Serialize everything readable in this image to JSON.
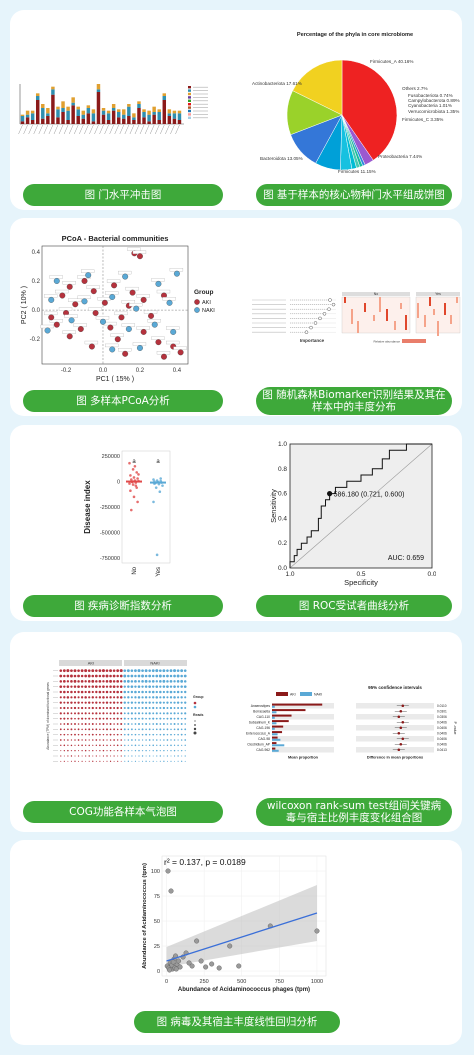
{
  "captions": [
    "图 门水平冲击图",
    "图 基于样本的核心物种门水平组成饼图",
    "图 多样本PCoA分析",
    "图 随机森林Biomarker识别结果及其在样本中的丰度分布",
    "图 疾病诊断指数分析",
    "图 ROC受试者曲线分析",
    "COG功能各样本气泡图",
    "wilcoxon rank-sum test组间关键病毒与宿主比例丰度变化组合图",
    "图 病毒及其宿主丰度线性回归分析"
  ],
  "colors": {
    "green": "#3ea93a",
    "aki": "#b5323d",
    "naki": "#5aa9d6",
    "bg": "#e6f4fb"
  },
  "chart_data": [
    {
      "id": "phylum-bar",
      "type": "bar",
      "series": [
        {
          "values": [
            2,
            5,
            3,
            18,
            4,
            6,
            22,
            5,
            9,
            3,
            14,
            6,
            4,
            8,
            2,
            24,
            7,
            3,
            10,
            5,
            4,
            6,
            3,
            12,
            5,
            2,
            7,
            3,
            18,
            6,
            4,
            3
          ]
        },
        {
          "values": [
            4,
            2,
            5,
            3,
            8,
            2,
            4,
            6,
            3,
            7,
            2,
            5,
            3,
            4,
            6,
            2,
            3,
            5,
            2,
            4,
            3,
            7,
            2,
            3,
            4,
            5,
            2,
            6,
            3,
            2,
            4,
            5
          ]
        },
        {
          "values": [
            1,
            3,
            2,
            2,
            3,
            4,
            2,
            2,
            5,
            3,
            4,
            2,
            3,
            2,
            3,
            4,
            2,
            2,
            3,
            2,
            4,
            2,
            3,
            2,
            2,
            3,
            4,
            2,
            2,
            3,
            2,
            2
          ]
        }
      ],
      "ylim": [
        0,
        30
      ]
    },
    {
      "id": "core-pie",
      "type": "pie",
      "title": "Percentage of the phyla in core microbiome",
      "slices": [
        {
          "label": "Firmicutes_A 40.16%",
          "value": 40.16,
          "color": "#ee2222"
        },
        {
          "label": "Others 2.7%",
          "value": 2.7,
          "color": "#9b59d0"
        },
        {
          "label": "Fusobacteriota 0.74%",
          "value": 0.74,
          "color": "#2e86de"
        },
        {
          "label": "Campylobacterota 0.89%",
          "value": 0.89,
          "color": "#1abc9c"
        },
        {
          "label": "Cyanobacteria 1.01%",
          "value": 1.01,
          "color": "#48c9b0"
        },
        {
          "label": "Verrucomicrobiota 1.35%",
          "value": 1.35,
          "color": "#00bcd4"
        },
        {
          "label": "Firmicutes_C 3.35%",
          "value": 3.35,
          "color": "#16c1e0"
        },
        {
          "label": "Proteobacteria 7.44%",
          "value": 7.44,
          "color": "#00a0d8"
        },
        {
          "label": "Firmicutes 11.15%",
          "value": 11.15,
          "color": "#3477d8"
        },
        {
          "label": "Bacteroidota 13.05%",
          "value": 13.05,
          "color": "#9ad22a"
        },
        {
          "label": "Actinobacteriota 17.61%",
          "value": 17.61,
          "color": "#f1d120"
        }
      ]
    },
    {
      "id": "pcoa",
      "type": "scatter",
      "title": "PCoA - Bacterial communities",
      "xlabel": "PC1 ( 15% )",
      "ylabel": "PC2 ( 10% )",
      "xlim": [
        -0.33,
        0.46
      ],
      "ylim": [
        -0.37,
        0.44
      ],
      "xticks": [
        "-0.2",
        "0.0",
        "0.2",
        "0.4"
      ],
      "xtickvals": [
        -0.2,
        0,
        0.2,
        0.4
      ],
      "yticks": [
        "-0.2",
        "0.0",
        "0.2",
        "0.4"
      ],
      "ytickvals": [
        -0.2,
        0,
        0.2,
        0.4
      ],
      "legend_title": "Group",
      "series": [
        {
          "name": "AKI",
          "color": "#b5323d",
          "points": [
            [
              0.17,
              0.39
            ],
            [
              0.2,
              0.37
            ],
            [
              -0.1,
              0.2
            ],
            [
              -0.18,
              0.16
            ],
            [
              0.06,
              0.17
            ],
            [
              0.16,
              0.12
            ],
            [
              -0.05,
              0.13
            ],
            [
              -0.22,
              0.1
            ],
            [
              0.22,
              0.07
            ],
            [
              0.33,
              0.1
            ],
            [
              -0.15,
              0.04
            ],
            [
              0.01,
              0.05
            ],
            [
              0.14,
              0.03
            ],
            [
              -0.2,
              -0.02
            ],
            [
              -0.04,
              -0.02
            ],
            [
              0.1,
              -0.05
            ],
            [
              0.26,
              -0.04
            ],
            [
              -0.25,
              -0.1
            ],
            [
              -0.12,
              -0.13
            ],
            [
              0.04,
              -0.12
            ],
            [
              0.22,
              -0.15
            ],
            [
              -0.18,
              -0.18
            ],
            [
              0.08,
              -0.2
            ],
            [
              0.3,
              -0.22
            ],
            [
              0.38,
              -0.25
            ],
            [
              -0.06,
              -0.25
            ],
            [
              0.12,
              -0.3
            ],
            [
              0.33,
              -0.32
            ],
            [
              0.42,
              -0.29
            ],
            [
              -0.28,
              -0.05
            ]
          ]
        },
        {
          "name": "NAKI",
          "color": "#5aa9d6",
          "points": [
            [
              -0.25,
              0.2
            ],
            [
              0.12,
              0.23
            ],
            [
              0.4,
              0.25
            ],
            [
              -0.08,
              0.24
            ],
            [
              0.3,
              0.18
            ],
            [
              -0.28,
              0.07
            ],
            [
              0.05,
              0.09
            ],
            [
              0.18,
              0.01
            ],
            [
              -0.1,
              0.06
            ],
            [
              0.36,
              0.05
            ],
            [
              -0.17,
              -0.07
            ],
            [
              0.0,
              -0.08
            ],
            [
              0.28,
              -0.1
            ],
            [
              0.14,
              -0.13
            ],
            [
              -0.3,
              -0.14
            ],
            [
              0.2,
              -0.26
            ],
            [
              0.05,
              -0.27
            ],
            [
              0.38,
              -0.15
            ]
          ]
        }
      ]
    },
    {
      "id": "rf-importance",
      "type": "scatter",
      "xlabel": "Importance",
      "heatmap_headers": [
        "No",
        "Yes"
      ],
      "legend_title": "Relative abundance"
    },
    {
      "id": "disease-index",
      "type": "scatter",
      "ylabel": "Disease index",
      "categories": [
        "No",
        "Yes"
      ],
      "yticks": [
        "250000",
        "0",
        "-250000",
        "-500000",
        "-750000"
      ],
      "ytickvals": [
        250000,
        0,
        -250000,
        -500000,
        -750000
      ],
      "ylim": [
        -800000,
        300000
      ],
      "group_letters": [
        "a",
        "a"
      ],
      "series": [
        {
          "name": "No",
          "color": "#e04a4a",
          "points": [
            180000,
            120000,
            90000,
            60000,
            40000,
            30000,
            20000,
            10000,
            5000,
            0,
            -10000,
            -20000,
            -30000,
            -60000,
            -90000,
            -150000,
            -200000,
            -280000,
            150000,
            70000,
            -5000,
            -40000
          ]
        },
        {
          "name": "Yes",
          "color": "#5aa9d6",
          "points": [
            20000,
            10000,
            5000,
            0,
            -5000,
            -10000,
            -15000,
            -25000,
            -40000,
            -60000,
            -100000,
            -200000,
            -720000,
            30000,
            -20000
          ]
        }
      ],
      "medians": [
        0,
        -10000
      ]
    },
    {
      "id": "roc",
      "type": "line",
      "xlabel": "Specificity",
      "ylabel": "Sensitivity",
      "xticks": [
        "1.0",
        "0.5",
        "0.0"
      ],
      "yticks": [
        "0.0",
        "0.2",
        "0.4",
        "0.6",
        "0.8",
        "1.0"
      ],
      "auc_label": "AUC: 0.659",
      "point_label": "586.180 (0.721, 0.600)",
      "threshold_point": [
        0.721,
        0.6
      ],
      "curve": [
        [
          1,
          0
        ],
        [
          1,
          0.05
        ],
        [
          0.97,
          0.05
        ],
        [
          0.97,
          0.1
        ],
        [
          0.95,
          0.1
        ],
        [
          0.95,
          0.15
        ],
        [
          0.92,
          0.15
        ],
        [
          0.92,
          0.2
        ],
        [
          0.88,
          0.2
        ],
        [
          0.88,
          0.25
        ],
        [
          0.85,
          0.25
        ],
        [
          0.85,
          0.3
        ],
        [
          0.8,
          0.3
        ],
        [
          0.8,
          0.4
        ],
        [
          0.78,
          0.4
        ],
        [
          0.78,
          0.5
        ],
        [
          0.75,
          0.5
        ],
        [
          0.75,
          0.55
        ],
        [
          0.721,
          0.55
        ],
        [
          0.721,
          0.6
        ],
        [
          0.68,
          0.6
        ],
        [
          0.68,
          0.65
        ],
        [
          0.6,
          0.65
        ],
        [
          0.6,
          0.7
        ],
        [
          0.5,
          0.7
        ],
        [
          0.5,
          0.75
        ],
        [
          0.42,
          0.75
        ],
        [
          0.42,
          0.8
        ],
        [
          0.35,
          0.8
        ],
        [
          0.35,
          0.88
        ],
        [
          0.3,
          0.88
        ],
        [
          0.3,
          0.95
        ],
        [
          0.18,
          0.95
        ],
        [
          0.18,
          1
        ],
        [
          0,
          1
        ]
      ]
    },
    {
      "id": "cog-bubble",
      "type": "scatter",
      "ylabel": "Abundance (TPM) of dominant functional genes",
      "group_headers": [
        "AKI",
        "NAKI"
      ],
      "legend_titles": [
        "Group",
        "Reads"
      ]
    },
    {
      "id": "wilcoxon",
      "type": "bar",
      "title": "95% confidence intervals",
      "xlabel_left": "Mean proportion",
      "xlabel_right": "Difference in mean proportions",
      "legend": [
        "AKI",
        "NAKI"
      ],
      "right_axis_label": "P -value",
      "categories": [
        "Anaerostipes",
        "Borrasaetia",
        "CAG-110",
        "Subsalinum_K",
        "CAG-196",
        "Enterococcus_A",
        "CAG-98",
        "Clostridium_AP",
        "CAG-962"
      ],
      "aki": [
        0.9,
        0.6,
        0.35,
        0.3,
        0.2,
        0.18,
        0.1,
        0.08,
        0.06
      ],
      "naki": [
        0.05,
        0.08,
        0.05,
        0.08,
        0.05,
        0.1,
        0.15,
        0.22,
        0.12
      ],
      "pvalues": [
        "0.0110",
        "0.0301",
        "0.0306",
        "0.0406",
        "0.0406",
        "0.0406",
        "0.0406",
        "0.0406",
        "0.0413"
      ]
    },
    {
      "id": "regression",
      "type": "scatter",
      "xlabel": "Abundance of Acidaminococcus phages (tpm)",
      "ylabel": "Abundance of Acidaminococcus (tpm)",
      "annotation": "r² = 0.137, p = 0.0189",
      "xticks": [
        "0",
        "250",
        "500",
        "750",
        "1000"
      ],
      "xtickvals": [
        0,
        250,
        500,
        750,
        1000
      ],
      "yticks": [
        "0",
        "25",
        "50",
        "75",
        "100"
      ],
      "ytickvals": [
        0,
        25,
        50,
        75,
        100
      ],
      "xlim": [
        -30,
        1060
      ],
      "ylim": [
        -5,
        115
      ],
      "points": [
        [
          10,
          100
        ],
        [
          30,
          80
        ],
        [
          5,
          5
        ],
        [
          15,
          3
        ],
        [
          25,
          8
        ],
        [
          40,
          2
        ],
        [
          50,
          12
        ],
        [
          60,
          15
        ],
        [
          70,
          6
        ],
        [
          80,
          10
        ],
        [
          90,
          4
        ],
        [
          110,
          14
        ],
        [
          130,
          18
        ],
        [
          150,
          8
        ],
        [
          170,
          5
        ],
        [
          200,
          30
        ],
        [
          230,
          10
        ],
        [
          260,
          4
        ],
        [
          300,
          7
        ],
        [
          350,
          3
        ],
        [
          420,
          25
        ],
        [
          480,
          5
        ],
        [
          690,
          45
        ],
        [
          1000,
          40
        ],
        [
          20,
          1
        ],
        [
          35,
          6
        ],
        [
          45,
          9
        ],
        [
          55,
          3
        ],
        [
          65,
          2
        ]
      ],
      "fit": [
        [
          0,
          10
        ],
        [
          1000,
          58
        ]
      ]
    }
  ]
}
